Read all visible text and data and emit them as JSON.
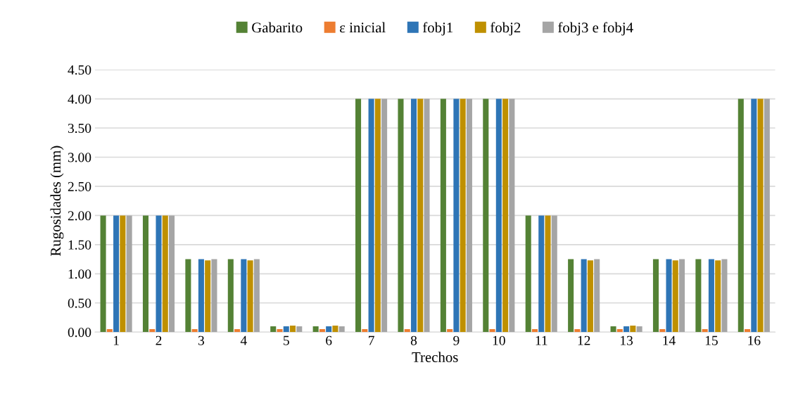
{
  "chart_data": {
    "type": "bar",
    "xlabel": "Trechos",
    "ylabel": "Rugosidades (mm)",
    "categories": [
      "1",
      "2",
      "3",
      "4",
      "5",
      "6",
      "7",
      "8",
      "9",
      "10",
      "11",
      "12",
      "13",
      "14",
      "15",
      "16"
    ],
    "series": [
      {
        "name": "Gabarito",
        "color": "#548235",
        "values": [
          2.0,
          2.0,
          1.25,
          1.25,
          0.1,
          0.1,
          4.0,
          4.0,
          4.0,
          4.0,
          2.0,
          1.25,
          0.1,
          1.25,
          1.25,
          4.0
        ]
      },
      {
        "name": "ε inicial",
        "color": "#ed7d31",
        "values": [
          0.05,
          0.05,
          0.05,
          0.05,
          0.05,
          0.05,
          0.05,
          0.05,
          0.05,
          0.05,
          0.05,
          0.05,
          0.05,
          0.05,
          0.05,
          0.05
        ]
      },
      {
        "name": "fobj1",
        "color": "#2e75b6",
        "values": [
          2.0,
          2.0,
          1.25,
          1.25,
          0.1,
          0.1,
          4.0,
          4.0,
          4.0,
          4.0,
          2.0,
          1.25,
          0.1,
          1.25,
          1.25,
          4.0
        ]
      },
      {
        "name": "fobj2",
        "color": "#bf9000",
        "values": [
          2.0,
          2.0,
          1.23,
          1.23,
          0.11,
          0.11,
          4.0,
          4.0,
          4.0,
          4.0,
          2.0,
          1.23,
          0.11,
          1.23,
          1.23,
          4.0
        ]
      },
      {
        "name": "fobj3 e fobj4",
        "color": "#a5a5a5",
        "values": [
          2.0,
          2.0,
          1.25,
          1.25,
          0.1,
          0.1,
          4.0,
          4.0,
          4.0,
          4.0,
          2.0,
          1.25,
          0.1,
          1.25,
          1.25,
          4.0
        ]
      }
    ],
    "ylim": [
      0,
      4.5
    ],
    "yticks": [
      {
        "value": 0,
        "label": "0.00"
      },
      {
        "value": 0.5,
        "label": "0.50"
      },
      {
        "value": 1,
        "label": "1.00"
      },
      {
        "value": 1.5,
        "label": "1.50"
      },
      {
        "value": 2,
        "label": "2.00"
      },
      {
        "value": 2.5,
        "label": "2.50"
      },
      {
        "value": 3,
        "label": "3.00"
      },
      {
        "value": 3.5,
        "label": "3.50"
      },
      {
        "value": 4,
        "label": "4.00"
      },
      {
        "value": 4.5,
        "label": "4.50"
      }
    ],
    "grid": "y",
    "legend": "top"
  }
}
